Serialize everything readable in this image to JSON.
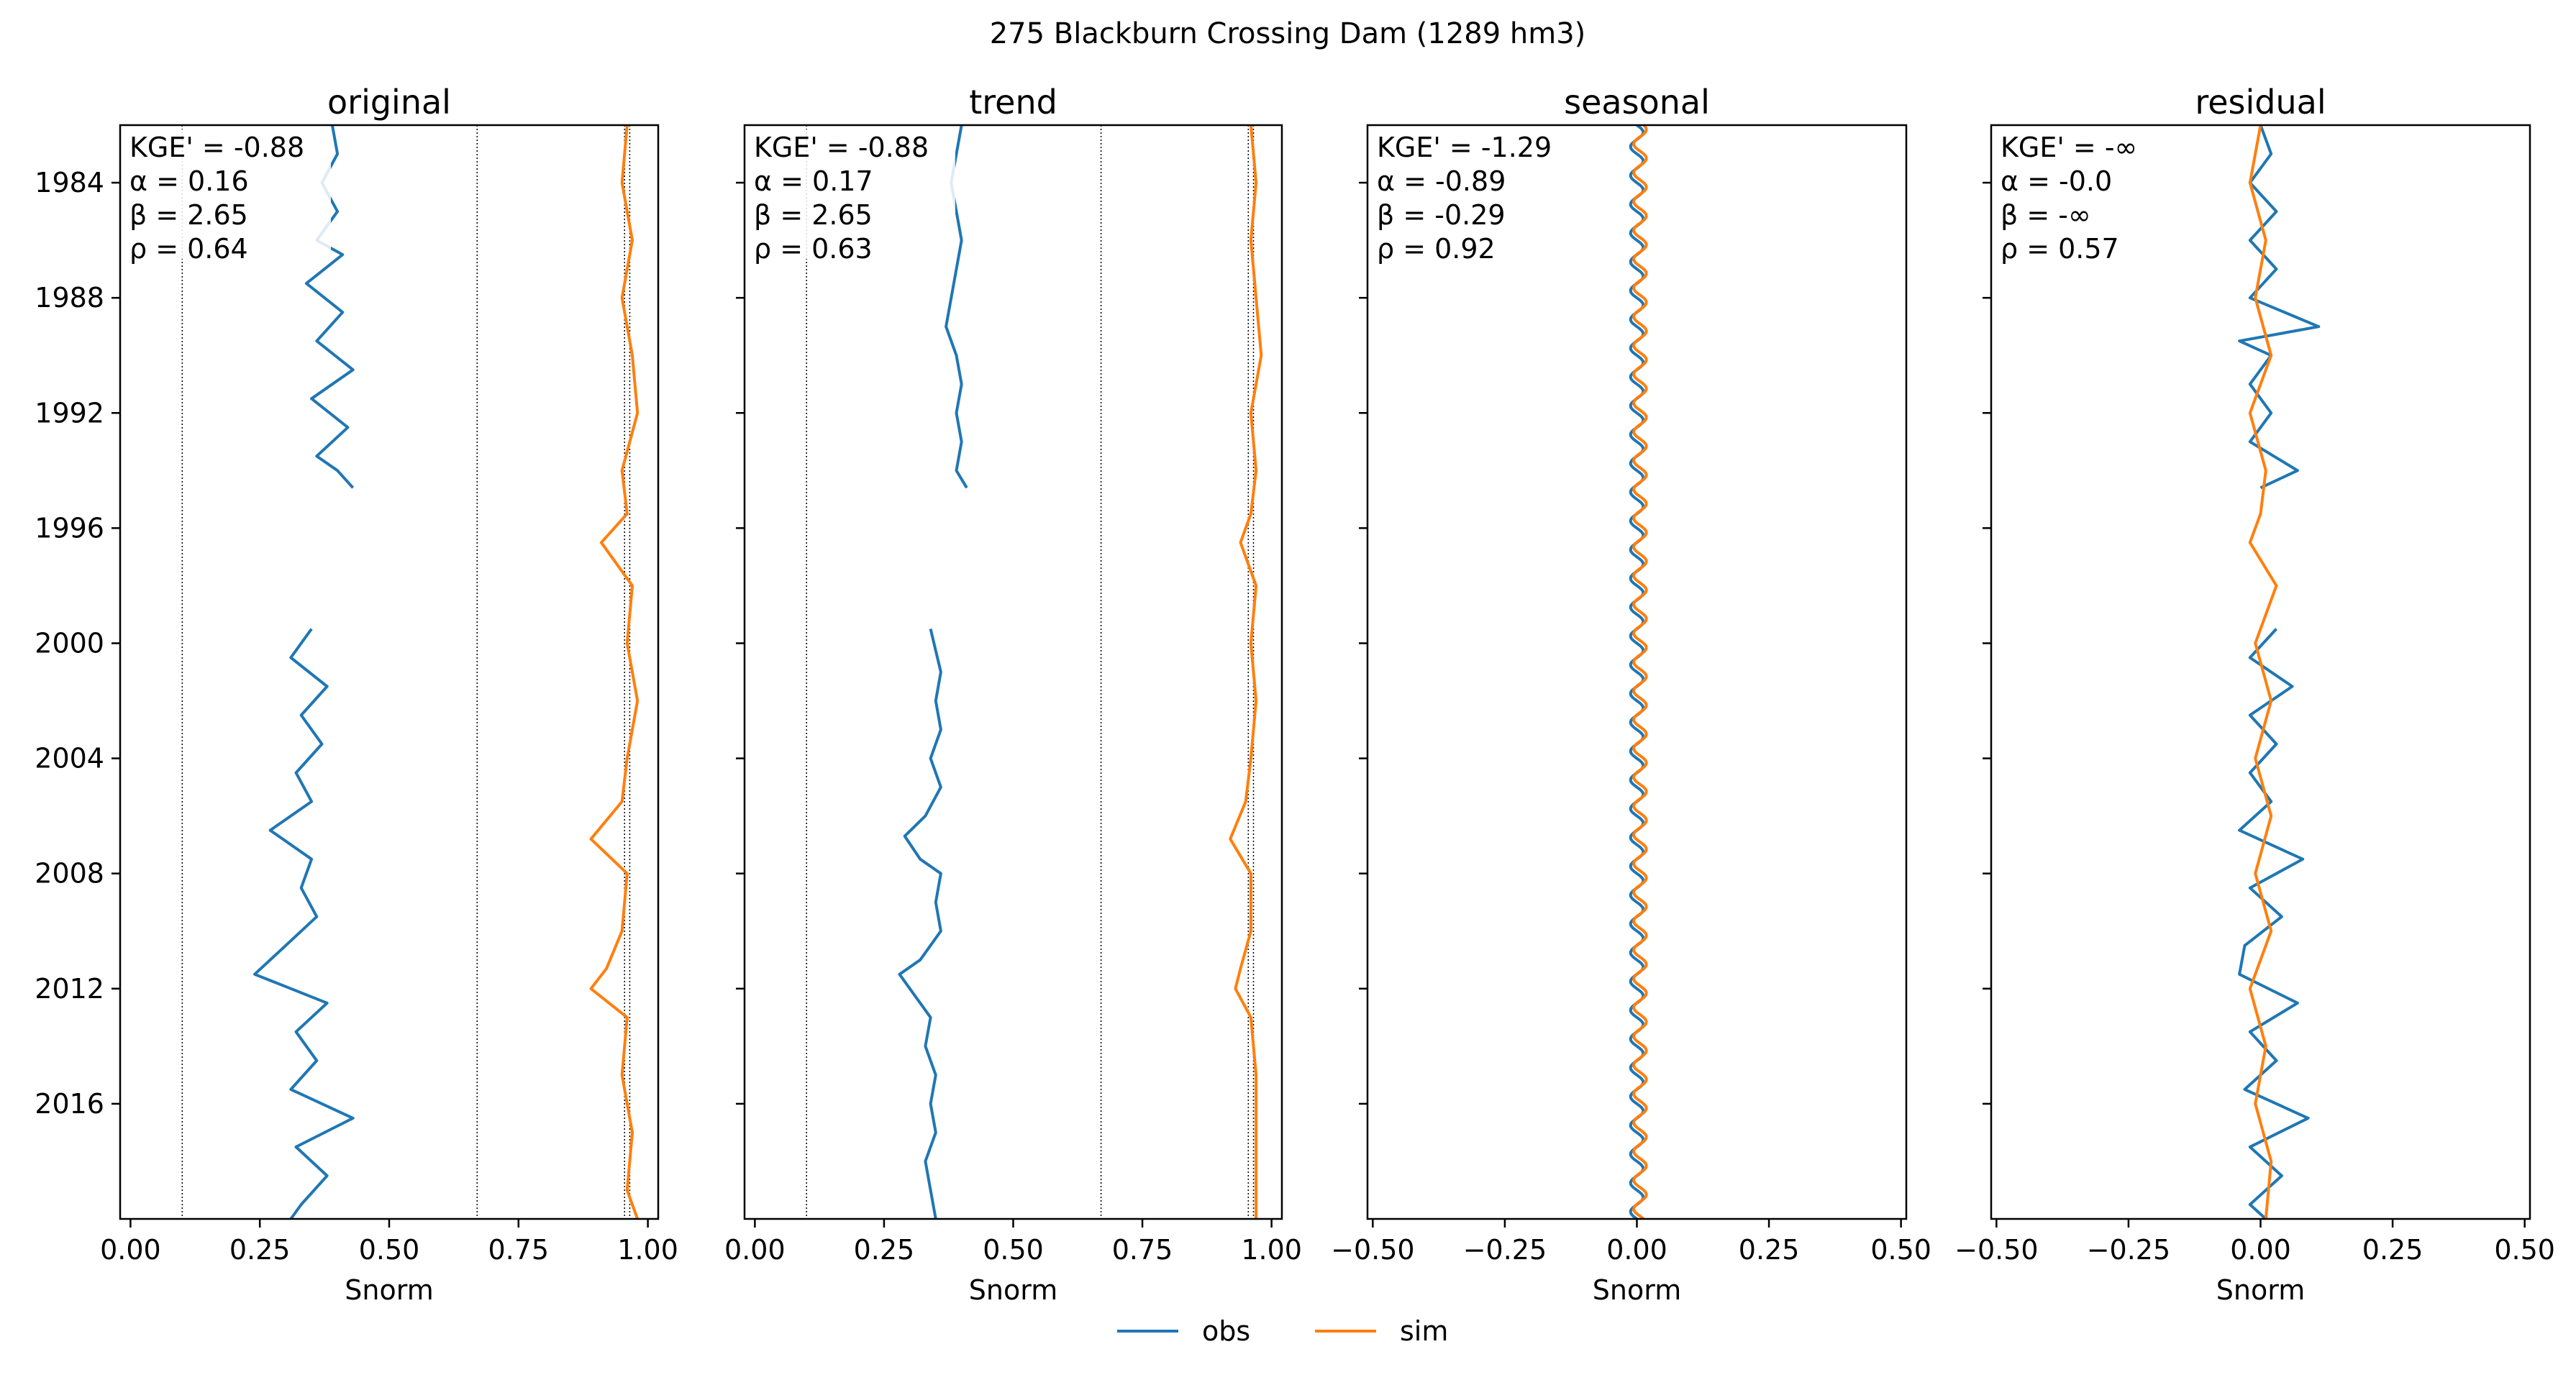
{
  "figure": {
    "suptitle": "275  Blackburn Crossing Dam (1289 hm3)",
    "legend": [
      "obs",
      "sim"
    ],
    "legend_position": "bottom-center"
  },
  "colors": {
    "obs": "#1f77b4",
    "obs_faint": "#a6c6e0",
    "sim": "#ff7f0e",
    "text": "#000000"
  },
  "chart_data": [
    {
      "type": "line",
      "title": "original",
      "xlabel": "Snorm",
      "ylabel": "",
      "xlim": [
        -0.02,
        1.02
      ],
      "ylim": [
        1982.0,
        2020.0
      ],
      "y_reversed": true,
      "xticks": [
        "0.00",
        "0.25",
        "0.50",
        "0.75",
        "1.00"
      ],
      "yticks": [
        "1984",
        "1988",
        "1992",
        "1996",
        "2000",
        "2004",
        "2008",
        "2012",
        "2016"
      ],
      "vlines": [
        0.1,
        0.67,
        0.955,
        0.965
      ],
      "annotations": [
        "KGE' = -0.88",
        "α = 0.16",
        "β = 2.65",
        "ρ = 0.64"
      ],
      "series": [
        {
          "name": "obs",
          "y": [
            1982.0,
            1983.0,
            1984.0,
            1985.0,
            1986.0,
            1986.5,
            1987.5,
            1988.5,
            1989.5,
            1990.5,
            1991.5,
            1992.5,
            1993.5,
            1994.0,
            1994.6
          ],
          "x": [
            0.39,
            0.4,
            0.37,
            0.4,
            0.36,
            0.41,
            0.34,
            0.41,
            0.36,
            0.43,
            0.35,
            0.42,
            0.36,
            0.4,
            0.43
          ]
        },
        {
          "name": "obs",
          "y": [
            1999.5,
            2000.5,
            2001.5,
            2002.5,
            2003.5,
            2004.5,
            2005.5,
            2006.5,
            2007.5,
            2008.5,
            2009.5,
            2010.5,
            2011.5,
            2012.5,
            2013.5,
            2014.5,
            2015.5,
            2016.5,
            2017.5,
            2018.5,
            2019.5,
            2020.0
          ],
          "x": [
            0.35,
            0.31,
            0.38,
            0.33,
            0.37,
            0.32,
            0.35,
            0.27,
            0.35,
            0.33,
            0.36,
            0.3,
            0.24,
            0.38,
            0.32,
            0.36,
            0.31,
            0.43,
            0.32,
            0.38,
            0.33,
            0.31
          ]
        },
        {
          "name": "sim",
          "y": [
            1982.0,
            1984.0,
            1986.0,
            1988.0,
            1990.0,
            1992.0,
            1994.0,
            1995.5,
            1996.5,
            1998.0,
            2000.0,
            2002.0,
            2004.0,
            2005.5,
            2006.8,
            2008.0,
            2010.0,
            2011.3,
            2012.0,
            2013.0,
            2015.0,
            2017.0,
            2019.0,
            2020.0
          ],
          "x": [
            0.96,
            0.95,
            0.97,
            0.95,
            0.97,
            0.98,
            0.95,
            0.96,
            0.91,
            0.97,
            0.96,
            0.98,
            0.96,
            0.95,
            0.89,
            0.96,
            0.95,
            0.92,
            0.89,
            0.96,
            0.95,
            0.97,
            0.96,
            0.98
          ]
        }
      ]
    },
    {
      "type": "line",
      "title": "trend",
      "xlabel": "Snorm",
      "ylabel": "",
      "xlim": [
        -0.02,
        1.02
      ],
      "ylim": [
        1982.0,
        2020.0
      ],
      "y_reversed": true,
      "xticks": [
        "0.00",
        "0.25",
        "0.50",
        "0.75",
        "1.00"
      ],
      "vlines": [
        0.1,
        0.67,
        0.955,
        0.965
      ],
      "annotations": [
        "KGE' = -0.88",
        "α = 0.17",
        "β = 2.65",
        "ρ = 0.63"
      ],
      "series": [
        {
          "name": "obs",
          "y": [
            1982.0,
            1983.0,
            1984.0,
            1985.0,
            1986.0,
            1987.0,
            1988.0,
            1989.0,
            1990.0,
            1991.0,
            1992.0,
            1993.0,
            1994.0,
            1994.6
          ],
          "x": [
            0.4,
            0.39,
            0.38,
            0.39,
            0.4,
            0.39,
            0.38,
            0.37,
            0.39,
            0.4,
            0.39,
            0.4,
            0.39,
            0.41
          ]
        },
        {
          "name": "obs",
          "y": [
            1999.5,
            2001.0,
            2002.0,
            2003.0,
            2004.0,
            2005.0,
            2006.0,
            2006.7,
            2007.5,
            2008.0,
            2009.0,
            2010.0,
            2011.0,
            2011.5,
            2012.0,
            2013.0,
            2014.0,
            2015.0,
            2016.0,
            2017.0,
            2018.0,
            2019.0,
            2020.0
          ],
          "x": [
            0.34,
            0.36,
            0.35,
            0.36,
            0.34,
            0.36,
            0.33,
            0.29,
            0.32,
            0.36,
            0.35,
            0.36,
            0.32,
            0.28,
            0.3,
            0.34,
            0.33,
            0.35,
            0.34,
            0.35,
            0.33,
            0.34,
            0.35
          ]
        },
        {
          "name": "sim",
          "y": [
            1982.0,
            1984.0,
            1986.0,
            1988.0,
            1990.0,
            1992.0,
            1994.0,
            1995.5,
            1996.5,
            1998.0,
            2000.0,
            2002.0,
            2004.0,
            2005.5,
            2006.8,
            2008.0,
            2010.0,
            2011.3,
            2012.0,
            2013.0,
            2015.0,
            2017.0,
            2019.0,
            2020.0
          ],
          "x": [
            0.96,
            0.97,
            0.96,
            0.97,
            0.98,
            0.96,
            0.97,
            0.96,
            0.94,
            0.97,
            0.96,
            0.97,
            0.96,
            0.95,
            0.92,
            0.96,
            0.96,
            0.94,
            0.93,
            0.96,
            0.97,
            0.97,
            0.97,
            0.97
          ]
        }
      ]
    },
    {
      "type": "line",
      "title": "seasonal",
      "xlabel": "Snorm",
      "ylabel": "",
      "xlim": [
        -0.51,
        0.51
      ],
      "ylim": [
        1982.0,
        2020.0
      ],
      "y_reversed": true,
      "xticks": [
        "−0.50",
        "−0.25",
        "0.00",
        "0.25",
        "0.50"
      ],
      "annotations": [
        "KGE' = -1.29",
        "α = -0.89",
        "β = -0.29",
        "ρ = 0.92"
      ],
      "oscillation": {
        "period_years": 1.0,
        "obs_amplitude": 0.012,
        "sim_amplitude": 0.012,
        "sim_offset": 0.006
      },
      "series": [
        {
          "name": "obs"
        },
        {
          "name": "sim"
        }
      ]
    },
    {
      "type": "line",
      "title": "residual",
      "xlabel": "Snorm",
      "ylabel": "",
      "xlim": [
        -0.51,
        0.51
      ],
      "ylim": [
        1982.0,
        2020.0
      ],
      "y_reversed": true,
      "xticks": [
        "−0.50",
        "−0.25",
        "0.00",
        "0.25",
        "0.50"
      ],
      "annotations": [
        "KGE' = -∞",
        "α = -0.0",
        "β = -∞",
        "ρ = 0.57"
      ],
      "series": [
        {
          "name": "obs",
          "y": [
            1982.0,
            1983.0,
            1984.0,
            1985.0,
            1986.0,
            1987.0,
            1988.0,
            1989.0,
            1989.5,
            1990.0,
            1991.0,
            1992.0,
            1993.0,
            1994.0,
            1994.6
          ],
          "x": [
            0.0,
            0.02,
            -0.02,
            0.03,
            -0.02,
            0.03,
            -0.02,
            0.11,
            -0.04,
            0.02,
            -0.02,
            0.02,
            -0.02,
            0.07,
            0.0
          ]
        },
        {
          "name": "obs",
          "y": [
            1999.5,
            2000.5,
            2001.5,
            2002.5,
            2003.5,
            2004.5,
            2005.5,
            2006.5,
            2007.5,
            2008.5,
            2009.5,
            2010.5,
            2011.5,
            2012.5,
            2013.5,
            2014.5,
            2015.5,
            2016.5,
            2017.5,
            2018.5,
            2019.5,
            2020.0
          ],
          "x": [
            0.03,
            -0.02,
            0.06,
            -0.02,
            0.03,
            -0.02,
            0.02,
            -0.04,
            0.08,
            -0.02,
            0.04,
            -0.03,
            -0.04,
            0.07,
            -0.02,
            0.03,
            -0.03,
            0.09,
            -0.02,
            0.04,
            -0.02,
            0.01
          ]
        },
        {
          "name": "sim",
          "y": [
            1982.0,
            1984.0,
            1986.0,
            1988.0,
            1990.0,
            1992.0,
            1994.0,
            1995.5,
            1996.5,
            1998.0,
            2000.0,
            2002.0,
            2004.0,
            2006.0,
            2008.0,
            2010.0,
            2012.0,
            2014.0,
            2016.0,
            2018.0,
            2020.0
          ],
          "x": [
            0.0,
            -0.02,
            0.01,
            -0.01,
            0.02,
            -0.02,
            0.01,
            0.0,
            -0.02,
            0.03,
            -0.01,
            0.02,
            -0.01,
            0.02,
            -0.01,
            0.02,
            -0.02,
            0.01,
            -0.01,
            0.02,
            0.01
          ]
        }
      ]
    }
  ]
}
